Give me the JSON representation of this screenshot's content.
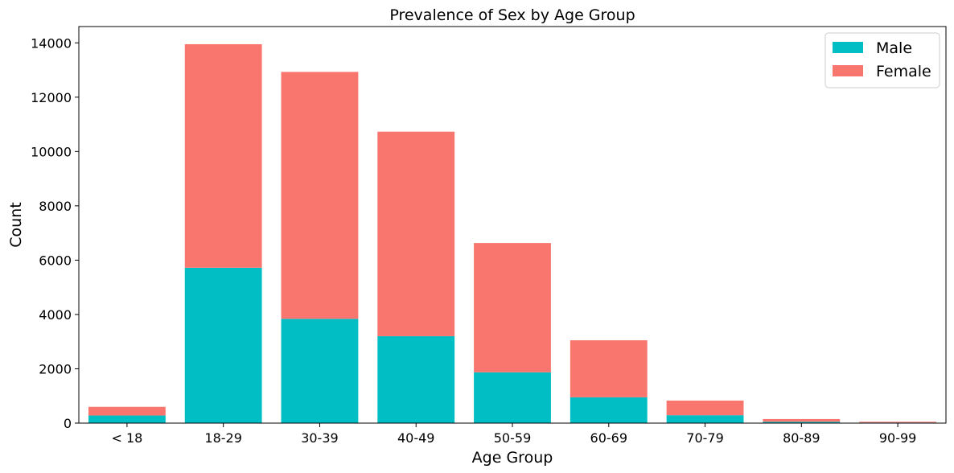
{
  "chart_data": {
    "type": "bar",
    "stacked": true,
    "title": "Prevalence of Sex by Age Group",
    "xlabel": "Age Group",
    "ylabel": "Count",
    "categories": [
      "< 18",
      "18-29",
      "30-39",
      "40-49",
      "50-59",
      "60-69",
      "70-79",
      "80-89",
      "90-99"
    ],
    "series": [
      {
        "name": "Male",
        "color": "#00bec4",
        "values": [
          280,
          5720,
          3840,
          3200,
          1870,
          950,
          290,
          50,
          20
        ]
      },
      {
        "name": "Female",
        "color": "#f8766d",
        "values": [
          320,
          8230,
          9090,
          7530,
          4760,
          2100,
          540,
          100,
          30
        ]
      }
    ],
    "ylim": [
      0,
      14600
    ],
    "yticks": [
      0,
      2000,
      4000,
      6000,
      8000,
      10000,
      12000,
      14000
    ],
    "ytick_labels": [
      "0",
      "2000",
      "4000",
      "6000",
      "8000",
      "10000",
      "12000",
      "14000"
    ],
    "grid": false,
    "legend_position": "top-right"
  }
}
